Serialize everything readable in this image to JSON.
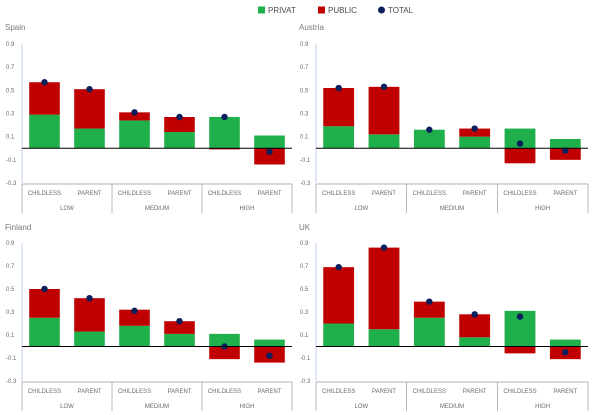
{
  "legend": {
    "items": [
      {
        "label": "PRIVAT",
        "color": "#1fb04b",
        "shape": "square"
      },
      {
        "label": "PUBLIC",
        "color": "#c00000",
        "shape": "square"
      },
      {
        "label": "TOTAL",
        "color": "#0b1f5c",
        "shape": "circle"
      }
    ],
    "placement": "top-center"
  },
  "chart_data": [
    {
      "type": "bar",
      "stacked": true,
      "title": "Spain",
      "categories": [
        "CHILDLESS",
        "PARENT",
        "CHILDLESS",
        "PARENT",
        "CHILDLESS",
        "PARENT"
      ],
      "groups": [
        "LOW",
        "MEDIUM",
        "HIGH"
      ],
      "series": [
        {
          "name": "PRIVAT",
          "values": [
            0.29,
            0.17,
            0.24,
            0.14,
            0.27,
            0.11
          ]
        },
        {
          "name": "PUBLIC",
          "values": [
            0.28,
            0.34,
            0.07,
            0.13,
            -0.01,
            -0.14
          ]
        },
        {
          "name": "TOTAL",
          "values": [
            0.57,
            0.51,
            0.31,
            0.27,
            0.27,
            -0.03
          ]
        }
      ],
      "yticks": [
        "0.9",
        "0.7",
        "0.5",
        "0.3",
        "0.1",
        "-0.1",
        "-0.3"
      ],
      "ylim": [
        -0.3,
        0.9
      ]
    },
    {
      "type": "bar",
      "stacked": true,
      "title": "Austria",
      "categories": [
        "CHILDLESS",
        "PARENT",
        "CHILDLESS",
        "PARENT",
        "CHILDLESS",
        "PARENT"
      ],
      "groups": [
        "LOW",
        "MEDIUM",
        "HIGH"
      ],
      "series": [
        {
          "name": "PRIVAT",
          "values": [
            0.19,
            0.12,
            0.16,
            0.1,
            0.17,
            0.08
          ]
        },
        {
          "name": "PUBLIC",
          "values": [
            0.33,
            0.41,
            0.0,
            0.07,
            -0.13,
            -0.1
          ]
        },
        {
          "name": "TOTAL",
          "values": [
            0.52,
            0.53,
            0.16,
            0.17,
            0.04,
            -0.02
          ]
        }
      ],
      "yticks": [
        "0.9",
        "0.7",
        "0.5",
        "0.3",
        "0.1",
        "-0.1",
        "-0.3"
      ],
      "ylim": [
        -0.3,
        0.9
      ]
    },
    {
      "type": "bar",
      "stacked": true,
      "title": "Finland",
      "categories": [
        "CHILDLESS",
        "PARENT",
        "CHILDLESS",
        "PARENT",
        "CHILDLESS",
        "PARENT"
      ],
      "groups": [
        "LOW",
        "MEDIUM",
        "HIGH"
      ],
      "series": [
        {
          "name": "PRIVAT",
          "values": [
            0.25,
            0.13,
            0.18,
            0.11,
            0.11,
            0.06
          ]
        },
        {
          "name": "PUBLIC",
          "values": [
            0.25,
            0.29,
            0.14,
            0.11,
            -0.11,
            -0.14
          ]
        },
        {
          "name": "TOTAL",
          "values": [
            0.5,
            0.42,
            0.31,
            0.22,
            0.0,
            -0.08
          ]
        }
      ],
      "yticks": [
        "0.9",
        "0.7",
        "0.5",
        "0.3",
        "0.1",
        "-0.1",
        "-0.3"
      ],
      "ylim": [
        -0.3,
        0.9
      ]
    },
    {
      "type": "bar",
      "stacked": true,
      "title": "UK",
      "categories": [
        "CHILDLESS",
        "PARENT",
        "CHILDLESS",
        "PARENT",
        "CHILDLESS",
        "PARENT"
      ],
      "groups": [
        "LOW",
        "MEDIUM",
        "HIGH"
      ],
      "series": [
        {
          "name": "PRIVAT",
          "values": [
            0.2,
            0.15,
            0.25,
            0.08,
            0.31,
            0.06
          ]
        },
        {
          "name": "PUBLIC",
          "values": [
            0.49,
            0.71,
            0.14,
            0.2,
            -0.06,
            -0.11
          ]
        },
        {
          "name": "TOTAL",
          "values": [
            0.69,
            0.86,
            0.39,
            0.28,
            0.26,
            -0.05
          ]
        }
      ],
      "yticks": [
        "0.9",
        "0.7",
        "0.5",
        "0.3",
        "0.1",
        "-0.1",
        "-0.3"
      ],
      "ylim": [
        -0.3,
        0.9
      ]
    }
  ]
}
